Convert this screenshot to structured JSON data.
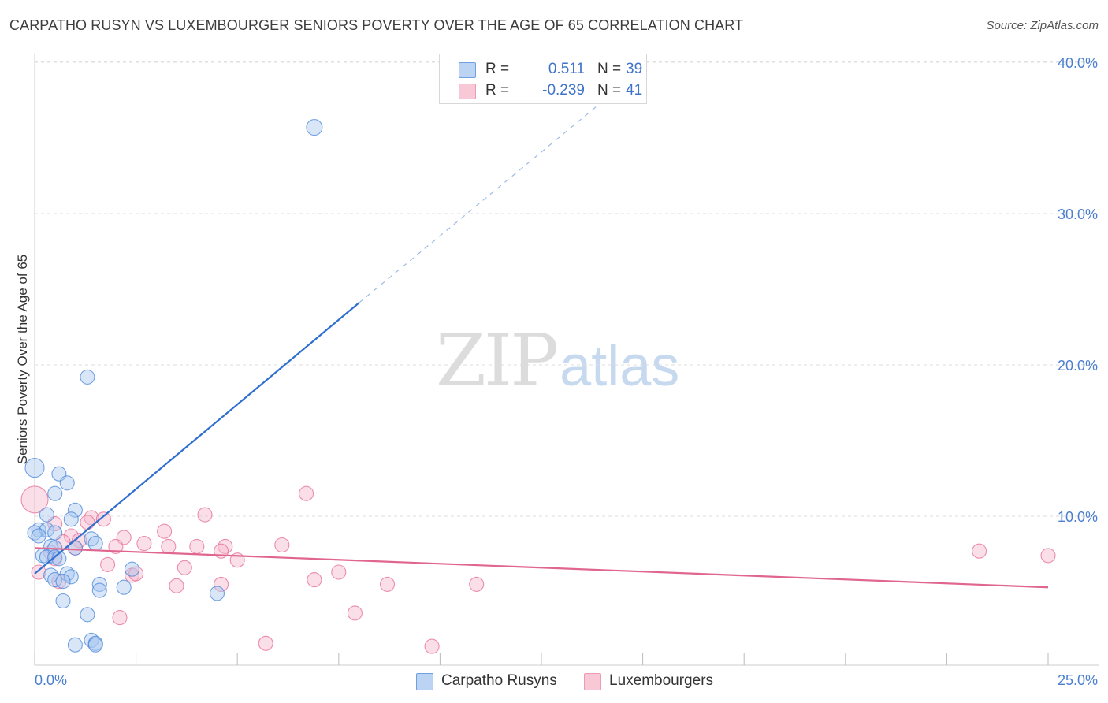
{
  "header": {
    "title": "CARPATHO RUSYN VS LUXEMBOURGER SENIORS POVERTY OVER THE AGE OF 65 CORRELATION CHART",
    "source": "Source: ZipAtlas.com"
  },
  "watermark": {
    "zip": "ZIP",
    "atlas": "atlas"
  },
  "legend": {
    "rows": [
      {
        "r_label": "R =",
        "r_value": "0.511",
        "n_label": "N =",
        "n_value": "39",
        "color": "#a9c8f0"
      },
      {
        "r_label": "R =",
        "r_value": "-0.239",
        "n_label": "N =",
        "n_value": "41",
        "color": "#f6b9cc"
      }
    ]
  },
  "bottom_legend": {
    "items": [
      {
        "label": "Carpatho Rusyns",
        "color": "#a9c8f0"
      },
      {
        "label": "Luxembourgers",
        "color": "#f6b9cc"
      }
    ]
  },
  "chart_data": {
    "type": "scatter",
    "title": "CARPATHO RUSYN VS LUXEMBOURGER SENIORS POVERTY OVER THE AGE OF 65 CORRELATION CHART",
    "xlabel": "",
    "ylabel": "Seniors Poverty Over the Age of 65",
    "xlim": [
      0,
      25
    ],
    "ylim": [
      0,
      40.5
    ],
    "x_tick_labels": [
      "0.0%",
      "25.0%"
    ],
    "y_tick_values": [
      10,
      20,
      30,
      40
    ],
    "y_tick_labels": [
      "10.0%",
      "20.0%",
      "30.0%",
      "40.0%"
    ],
    "grid": true,
    "series": [
      {
        "name": "Carpatho Rusyns",
        "color": "#4a86d8",
        "fill": "#a9c8f0",
        "points": [
          [
            6.9,
            35.7
          ],
          [
            1.3,
            19.2
          ],
          [
            0.0,
            13.2
          ],
          [
            0.6,
            12.8
          ],
          [
            0.8,
            12.2
          ],
          [
            0.5,
            11.5
          ],
          [
            1.0,
            10.4
          ],
          [
            0.3,
            10.1
          ],
          [
            0.9,
            9.8
          ],
          [
            0.1,
            9.1
          ],
          [
            0.3,
            9.1
          ],
          [
            0.0,
            8.9
          ],
          [
            0.5,
            8.9
          ],
          [
            0.1,
            8.7
          ],
          [
            1.4,
            8.5
          ],
          [
            1.5,
            8.2
          ],
          [
            0.4,
            8.0
          ],
          [
            0.5,
            7.9
          ],
          [
            1.0,
            7.9
          ],
          [
            0.2,
            7.4
          ],
          [
            0.3,
            7.3
          ],
          [
            0.5,
            7.3
          ],
          [
            0.6,
            7.2
          ],
          [
            2.4,
            6.5
          ],
          [
            0.4,
            6.1
          ],
          [
            0.8,
            6.2
          ],
          [
            0.9,
            6.0
          ],
          [
            0.5,
            5.8
          ],
          [
            0.7,
            5.7
          ],
          [
            1.6,
            5.5
          ],
          [
            2.2,
            5.3
          ],
          [
            1.6,
            5.1
          ],
          [
            4.5,
            4.9
          ],
          [
            0.7,
            4.4
          ],
          [
            1.3,
            3.5
          ],
          [
            1.4,
            1.8
          ],
          [
            1.5,
            1.6
          ],
          [
            1.5,
            1.5
          ],
          [
            1.0,
            1.5
          ]
        ],
        "sizes": [
          10,
          9,
          12,
          9,
          9,
          9,
          9,
          9,
          9,
          9,
          9,
          9,
          9,
          9,
          9,
          9,
          9,
          9,
          9,
          9,
          9,
          9,
          9,
          9,
          9,
          9,
          9,
          9,
          9,
          9,
          9,
          9,
          9,
          9,
          9,
          9,
          9,
          9,
          9
        ],
        "trend": {
          "x_start": 0.0,
          "y_start": 6.2,
          "x_solid_end": 8.0,
          "y_solid_end": 24.1,
          "x_dash_end": 14.5,
          "y_dash_end": 38.5
        }
      },
      {
        "name": "Luxembourgers",
        "color": "#e56b96",
        "fill": "#f6b9cc",
        "points": [
          [
            0.0,
            11.1
          ],
          [
            6.7,
            11.5
          ],
          [
            4.2,
            10.1
          ],
          [
            1.4,
            9.9
          ],
          [
            1.7,
            9.8
          ],
          [
            1.3,
            9.6
          ],
          [
            3.2,
            9.0
          ],
          [
            0.9,
            8.7
          ],
          [
            2.2,
            8.6
          ],
          [
            1.1,
            8.4
          ],
          [
            0.7,
            8.3
          ],
          [
            2.7,
            8.2
          ],
          [
            6.1,
            8.1
          ],
          [
            2.0,
            8.0
          ],
          [
            3.3,
            8.0
          ],
          [
            4.0,
            8.0
          ],
          [
            4.7,
            8.0
          ],
          [
            1.0,
            7.9
          ],
          [
            4.6,
            7.7
          ],
          [
            0.4,
            7.6
          ],
          [
            23.3,
            7.7
          ],
          [
            25.0,
            7.4
          ],
          [
            0.5,
            7.2
          ],
          [
            5.0,
            7.1
          ],
          [
            1.8,
            6.8
          ],
          [
            3.7,
            6.6
          ],
          [
            0.1,
            6.3
          ],
          [
            2.4,
            6.1
          ],
          [
            2.5,
            6.2
          ],
          [
            7.5,
            6.3
          ],
          [
            6.9,
            5.8
          ],
          [
            0.6,
            5.7
          ],
          [
            4.6,
            5.5
          ],
          [
            8.7,
            5.5
          ],
          [
            10.9,
            5.5
          ],
          [
            3.5,
            5.4
          ],
          [
            7.9,
            3.6
          ],
          [
            2.1,
            3.3
          ],
          [
            5.7,
            1.6
          ],
          [
            9.8,
            1.4
          ],
          [
            0.5,
            9.5
          ]
        ],
        "sizes": [
          17,
          9,
          9,
          9,
          9,
          9,
          9,
          9,
          9,
          9,
          9,
          9,
          9,
          9,
          9,
          9,
          9,
          9,
          9,
          9,
          9,
          9,
          9,
          9,
          9,
          9,
          9,
          9,
          9,
          9,
          9,
          9,
          9,
          9,
          9,
          9,
          9,
          9,
          9,
          9,
          9
        ],
        "trend": {
          "x_start": 0.0,
          "y_start": 7.9,
          "x_solid_end": 25.0,
          "y_solid_end": 5.3
        }
      }
    ]
  }
}
